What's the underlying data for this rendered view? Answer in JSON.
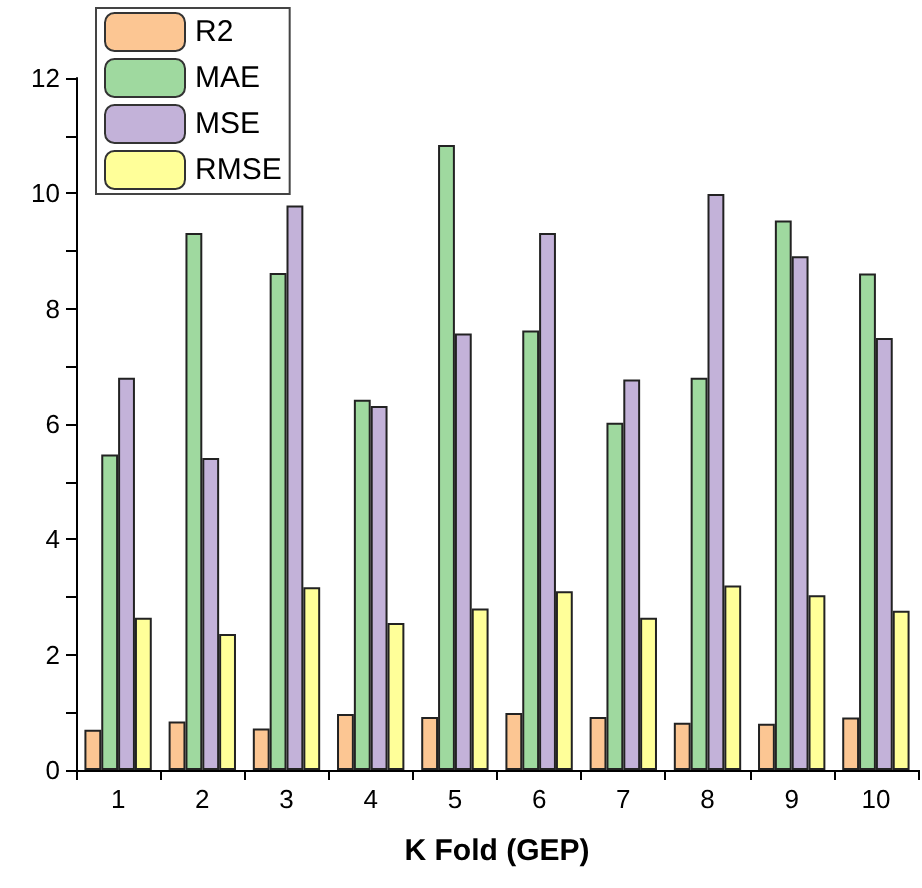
{
  "chart_data": {
    "type": "bar",
    "xlabel": "K Fold (GEP)",
    "categories": [
      "1",
      "2",
      "3",
      "4",
      "5",
      "6",
      "7",
      "8",
      "9",
      "10"
    ],
    "series": [
      {
        "name": "R2",
        "color": "#fcc693",
        "values": [
          0.7,
          0.84,
          0.72,
          0.97,
          0.92,
          0.99,
          0.92,
          0.82,
          0.8,
          0.91
        ]
      },
      {
        "name": "MAE",
        "color": "#9fd99f",
        "values": [
          5.47,
          9.31,
          8.62,
          6.42,
          10.84,
          7.62,
          6.02,
          6.8,
          9.53,
          8.61
        ]
      },
      {
        "name": "MSE",
        "color": "#c3b2d9",
        "values": [
          6.8,
          5.41,
          9.79,
          6.31,
          7.57,
          9.31,
          6.77,
          9.99,
          8.91,
          7.49
        ]
      },
      {
        "name": "RMSE",
        "color": "#ffff99",
        "values": [
          2.64,
          2.36,
          3.17,
          2.55,
          2.8,
          3.1,
          2.64,
          3.2,
          3.03,
          2.76
        ]
      }
    ],
    "ylim": [
      0,
      12
    ],
    "yticks": [
      0,
      2,
      4,
      6,
      8,
      10,
      12
    ],
    "grid": false,
    "legend": "top left"
  }
}
